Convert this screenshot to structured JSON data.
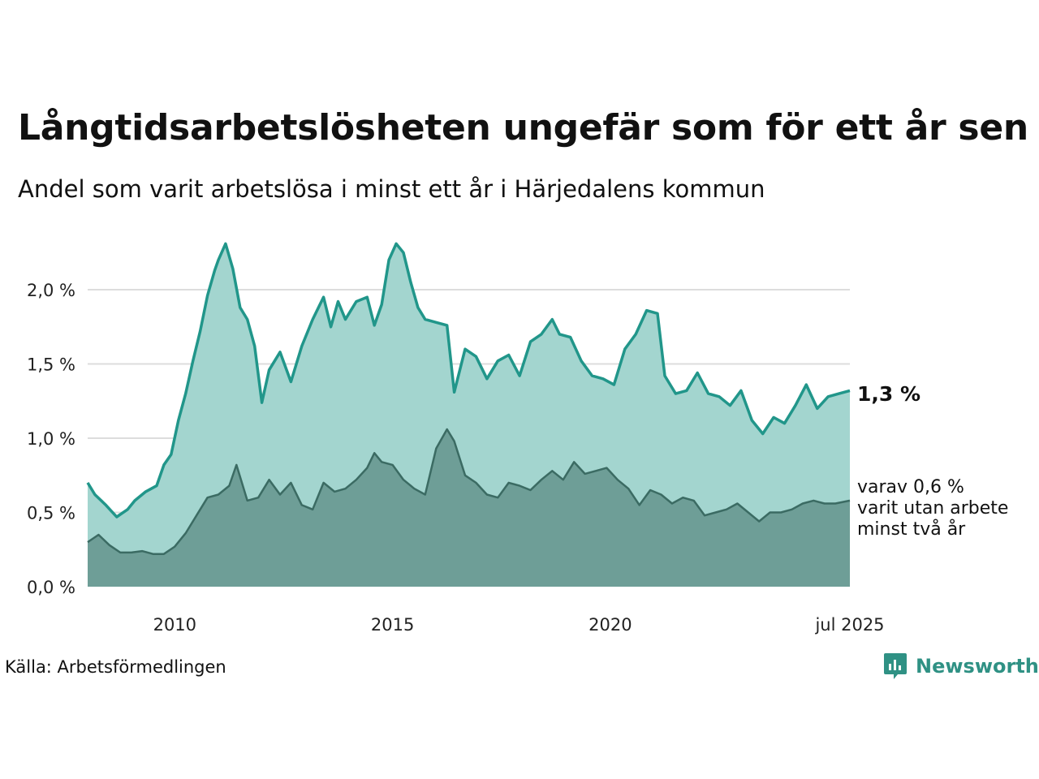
{
  "header": {
    "title": "Långtidsarbetslösheten ungefär som för ett år sen",
    "subtitle": "Andel som varit arbetslösa i minst ett år i Härjedalens kommun"
  },
  "footer": {
    "source": "Källa: Arbetsförmedlingen",
    "brand": "Newsworthy"
  },
  "colors": {
    "main_line": "#21968a",
    "main_fill": "#a3d5cf",
    "sub_line": "#3b6b63",
    "sub_fill": "#6e9e97",
    "grid": "#dddddd",
    "brand": "#2f9184"
  },
  "chart_data": {
    "type": "area",
    "x_start": "2008-01",
    "x_end": "2025-07",
    "xtick_labels": [
      {
        "x": "2010-01",
        "label": "2010"
      },
      {
        "x": "2015-01",
        "label": "2015"
      },
      {
        "x": "2020-01",
        "label": "2020"
      },
      {
        "x": "2025-07",
        "label": "jul 2025"
      }
    ],
    "ylim": [
      0,
      2.4
    ],
    "yticks": [
      0.0,
      0.5,
      1.0,
      1.5,
      2.0
    ],
    "ytick_labels": [
      "0,0 %",
      "0,5 %",
      "1,0 %",
      "1,5 %",
      "2,0 %"
    ],
    "grid": true,
    "end_labels": {
      "main": "1,3 %",
      "sub_lines": [
        "varav 0,6 %",
        "varit utan arbete",
        "minst två år"
      ]
    },
    "series": [
      {
        "key": "at_least_one_year",
        "points": [
          [
            "2008-01",
            0.7
          ],
          [
            "2008-03",
            0.62
          ],
          [
            "2008-06",
            0.55
          ],
          [
            "2008-09",
            0.47
          ],
          [
            "2008-12",
            0.52
          ],
          [
            "2009-02",
            0.58
          ],
          [
            "2009-05",
            0.64
          ],
          [
            "2009-08",
            0.68
          ],
          [
            "2009-10",
            0.82
          ],
          [
            "2009-12",
            0.89
          ],
          [
            "2010-02",
            1.12
          ],
          [
            "2010-04",
            1.3
          ],
          [
            "2010-06",
            1.52
          ],
          [
            "2010-08",
            1.72
          ],
          [
            "2010-10",
            1.96
          ],
          [
            "2010-12",
            2.13
          ],
          [
            "2011-01",
            2.2
          ],
          [
            "2011-03",
            2.31
          ],
          [
            "2011-05",
            2.14
          ],
          [
            "2011-07",
            1.88
          ],
          [
            "2011-09",
            1.8
          ],
          [
            "2011-11",
            1.62
          ],
          [
            "2012-01",
            1.24
          ],
          [
            "2012-03",
            1.46
          ],
          [
            "2012-06",
            1.58
          ],
          [
            "2012-09",
            1.38
          ],
          [
            "2012-12",
            1.62
          ],
          [
            "2013-03",
            1.8
          ],
          [
            "2013-06",
            1.95
          ],
          [
            "2013-08",
            1.75
          ],
          [
            "2013-10",
            1.92
          ],
          [
            "2013-12",
            1.8
          ],
          [
            "2014-03",
            1.92
          ],
          [
            "2014-06",
            1.95
          ],
          [
            "2014-08",
            1.76
          ],
          [
            "2014-10",
            1.9
          ],
          [
            "2014-12",
            2.2
          ],
          [
            "2015-02",
            2.31
          ],
          [
            "2015-04",
            2.25
          ],
          [
            "2015-06",
            2.05
          ],
          [
            "2015-08",
            1.88
          ],
          [
            "2015-10",
            1.8
          ],
          [
            "2016-01",
            1.78
          ],
          [
            "2016-04",
            1.76
          ],
          [
            "2016-06",
            1.31
          ],
          [
            "2016-09",
            1.6
          ],
          [
            "2016-12",
            1.55
          ],
          [
            "2017-03",
            1.4
          ],
          [
            "2017-06",
            1.52
          ],
          [
            "2017-09",
            1.56
          ],
          [
            "2017-12",
            1.42
          ],
          [
            "2018-03",
            1.65
          ],
          [
            "2018-06",
            1.7
          ],
          [
            "2018-09",
            1.8
          ],
          [
            "2018-11",
            1.7
          ],
          [
            "2019-02",
            1.68
          ],
          [
            "2019-05",
            1.52
          ],
          [
            "2019-08",
            1.42
          ],
          [
            "2019-11",
            1.4
          ],
          [
            "2020-02",
            1.36
          ],
          [
            "2020-05",
            1.6
          ],
          [
            "2020-08",
            1.7
          ],
          [
            "2020-11",
            1.86
          ],
          [
            "2021-02",
            1.84
          ],
          [
            "2021-04",
            1.42
          ],
          [
            "2021-07",
            1.3
          ],
          [
            "2021-10",
            1.32
          ],
          [
            "2022-01",
            1.44
          ],
          [
            "2022-04",
            1.3
          ],
          [
            "2022-07",
            1.28
          ],
          [
            "2022-10",
            1.22
          ],
          [
            "2023-01",
            1.32
          ],
          [
            "2023-04",
            1.12
          ],
          [
            "2023-07",
            1.03
          ],
          [
            "2023-10",
            1.14
          ],
          [
            "2024-01",
            1.1
          ],
          [
            "2024-04",
            1.22
          ],
          [
            "2024-07",
            1.36
          ],
          [
            "2024-10",
            1.2
          ],
          [
            "2025-01",
            1.28
          ],
          [
            "2025-04",
            1.3
          ],
          [
            "2025-07",
            1.32
          ]
        ]
      },
      {
        "key": "at_least_two_years",
        "points": [
          [
            "2008-01",
            0.3
          ],
          [
            "2008-04",
            0.35
          ],
          [
            "2008-07",
            0.28
          ],
          [
            "2008-10",
            0.23
          ],
          [
            "2009-01",
            0.23
          ],
          [
            "2009-04",
            0.24
          ],
          [
            "2009-07",
            0.22
          ],
          [
            "2009-10",
            0.22
          ],
          [
            "2010-01",
            0.27
          ],
          [
            "2010-04",
            0.36
          ],
          [
            "2010-07",
            0.48
          ],
          [
            "2010-10",
            0.6
          ],
          [
            "2011-01",
            0.62
          ],
          [
            "2011-04",
            0.68
          ],
          [
            "2011-06",
            0.82
          ],
          [
            "2011-09",
            0.58
          ],
          [
            "2011-12",
            0.6
          ],
          [
            "2012-03",
            0.72
          ],
          [
            "2012-06",
            0.62
          ],
          [
            "2012-09",
            0.7
          ],
          [
            "2012-12",
            0.55
          ],
          [
            "2013-03",
            0.52
          ],
          [
            "2013-06",
            0.7
          ],
          [
            "2013-09",
            0.64
          ],
          [
            "2013-12",
            0.66
          ],
          [
            "2014-03",
            0.72
          ],
          [
            "2014-06",
            0.8
          ],
          [
            "2014-08",
            0.9
          ],
          [
            "2014-10",
            0.84
          ],
          [
            "2015-01",
            0.82
          ],
          [
            "2015-04",
            0.72
          ],
          [
            "2015-07",
            0.66
          ],
          [
            "2015-10",
            0.62
          ],
          [
            "2016-01",
            0.93
          ],
          [
            "2016-04",
            1.06
          ],
          [
            "2016-06",
            0.98
          ],
          [
            "2016-09",
            0.75
          ],
          [
            "2016-12",
            0.7
          ],
          [
            "2017-03",
            0.62
          ],
          [
            "2017-06",
            0.6
          ],
          [
            "2017-09",
            0.7
          ],
          [
            "2017-12",
            0.68
          ],
          [
            "2018-03",
            0.65
          ],
          [
            "2018-06",
            0.72
          ],
          [
            "2018-09",
            0.78
          ],
          [
            "2018-12",
            0.72
          ],
          [
            "2019-03",
            0.84
          ],
          [
            "2019-06",
            0.76
          ],
          [
            "2019-09",
            0.78
          ],
          [
            "2019-12",
            0.8
          ],
          [
            "2020-03",
            0.72
          ],
          [
            "2020-06",
            0.66
          ],
          [
            "2020-09",
            0.55
          ],
          [
            "2020-12",
            0.65
          ],
          [
            "2021-03",
            0.62
          ],
          [
            "2021-06",
            0.56
          ],
          [
            "2021-09",
            0.6
          ],
          [
            "2021-12",
            0.58
          ],
          [
            "2022-03",
            0.48
          ],
          [
            "2022-06",
            0.5
          ],
          [
            "2022-09",
            0.52
          ],
          [
            "2022-12",
            0.56
          ],
          [
            "2023-03",
            0.5
          ],
          [
            "2023-06",
            0.44
          ],
          [
            "2023-09",
            0.5
          ],
          [
            "2023-12",
            0.5
          ],
          [
            "2024-03",
            0.52
          ],
          [
            "2024-06",
            0.56
          ],
          [
            "2024-09",
            0.58
          ],
          [
            "2024-12",
            0.56
          ],
          [
            "2025-03",
            0.56
          ],
          [
            "2025-07",
            0.58
          ]
        ]
      }
    ]
  }
}
